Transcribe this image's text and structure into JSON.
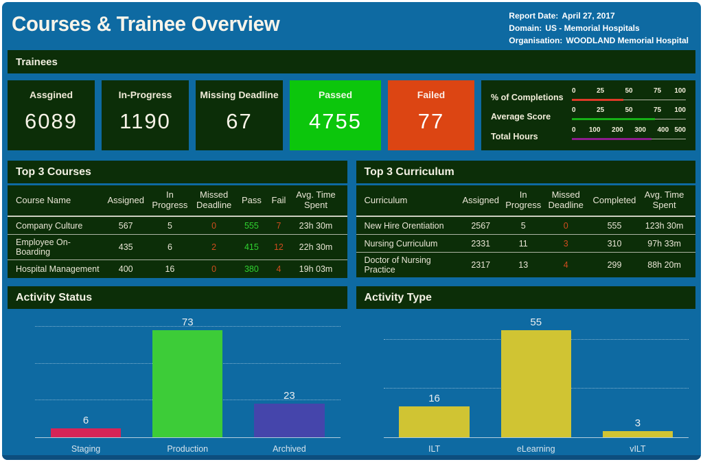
{
  "header": {
    "title": "Courses & Trainee Overview",
    "report": [
      {
        "label": "Report Date:",
        "value": "April 27, 2017"
      },
      {
        "label": "Domain:",
        "value": "US - Memorial Hospitals"
      },
      {
        "label": "Organisation:",
        "value": "WOODLAND Memorial Hospital"
      }
    ]
  },
  "trainees": {
    "section_title": "Trainees",
    "kpis": [
      {
        "label": "Assgined",
        "value": "6089",
        "variant": "default"
      },
      {
        "label": "In-Progress",
        "value": "1190",
        "variant": "default"
      },
      {
        "label": "Missing Deadline",
        "value": "67",
        "variant": "default"
      },
      {
        "label": "Passed",
        "value": "4755",
        "variant": "passed"
      },
      {
        "label": "Failed",
        "value": "77",
        "variant": "failed"
      }
    ],
    "gauges": [
      {
        "label": "% of Completions",
        "ticks": [
          "0",
          "25",
          "50",
          "75",
          "100"
        ],
        "max": 100,
        "value": 45,
        "color": "#e03a28"
      },
      {
        "label": "Average Score",
        "ticks": [
          "0",
          "25",
          "50",
          "75",
          "100"
        ],
        "max": 100,
        "value": 73,
        "color": "#16b116"
      },
      {
        "label": "Total Hours",
        "ticks": [
          "0",
          "100",
          "200",
          "300",
          "400",
          "500"
        ],
        "max": 500,
        "value": 350,
        "color": "#8d1d8d"
      }
    ]
  },
  "tables": [
    {
      "title": "Top 3 Courses",
      "columns": [
        "Course Name",
        "Assigned",
        "In Progress",
        "Missed Deadline",
        "Pass",
        "Fail",
        "Avg. Time Spent"
      ],
      "column_colors": [
        "plain",
        "plain",
        "plain",
        "red",
        "green",
        "red",
        "plain"
      ],
      "rows": [
        [
          "Company Culture",
          "567",
          "5",
          "0",
          "555",
          "7",
          "23h 30m"
        ],
        [
          "Employee On-Boarding",
          "435",
          "6",
          "2",
          "415",
          "12",
          "22h 30m"
        ],
        [
          "Hospital Management",
          "400",
          "16",
          "0",
          "380",
          "4",
          "19h 03m"
        ]
      ]
    },
    {
      "title": "Top 3 Curriculum",
      "columns": [
        "Curriculum",
        "Assigned",
        "In Progress",
        "Missed Deadline",
        "Completed",
        "Avg. Time Spent"
      ],
      "column_colors": [
        "plain",
        "plain",
        "plain",
        "red",
        "plain",
        "plain"
      ],
      "rows": [
        [
          "New Hire Orentiation",
          "2567",
          "5",
          "0",
          "555",
          "123h 30m"
        ],
        [
          "Nursing Curriculum",
          "2331",
          "11",
          "3",
          "310",
          "97h 33m"
        ],
        [
          "Doctor of Nursing Practice",
          "2317",
          "13",
          "4",
          "299",
          "88h 20m"
        ]
      ]
    }
  ],
  "chart_data": [
    {
      "type": "bar",
      "title": "Activity Status",
      "categories": [
        "Staging",
        "Production",
        "Archived"
      ],
      "values": [
        6,
        73,
        23
      ],
      "bar_colors": [
        "#d62457",
        "#3dcc38",
        "#4545ab"
      ],
      "ylim": [
        0,
        85
      ],
      "gridlines": [
        25,
        50,
        75
      ],
      "xlabel": "",
      "ylabel": "",
      "legend": false,
      "grid": true
    },
    {
      "type": "bar",
      "title": "Activity Type",
      "categories": [
        "ILT",
        "eLearning",
        "vILT"
      ],
      "values": [
        16,
        55,
        3
      ],
      "bar_colors": [
        "#d0c433",
        "#d0c433",
        "#d0c433"
      ],
      "ylim": [
        0,
        64
      ],
      "gridlines": [
        25,
        50
      ],
      "xlabel": "",
      "ylabel": "",
      "legend": false,
      "grid": true
    }
  ],
  "colors": {
    "background": "#0e6aa2",
    "panel_green": "#0c2e08",
    "passed_green": "#0cc60c",
    "failed_orange": "#dc4513",
    "value_red": "#cf4d1e",
    "value_green": "#30d330"
  }
}
